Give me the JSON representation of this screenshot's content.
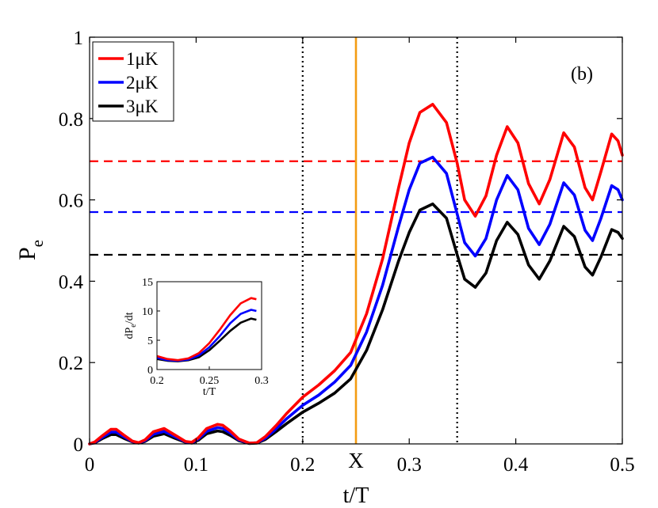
{
  "chart_data": {
    "type": "line",
    "panel_label": "(b)",
    "xlabel": "t/T",
    "ylabel": {
      "main": "P",
      "sub": "e"
    },
    "xlim": [
      0,
      0.5
    ],
    "ylim": [
      0,
      1
    ],
    "xticks": [
      "0",
      "0.1",
      "0.2",
      "0.3",
      "0.4",
      "0.5"
    ],
    "yticks": [
      "0",
      "0.2",
      "0.4",
      "0.6",
      "0.8",
      "1"
    ],
    "x_marker": {
      "label": "X",
      "x": 0.25,
      "color": "#f39c12"
    },
    "vertical_dotted": [
      0.2,
      0.345
    ],
    "series": [
      {
        "name": "1μK",
        "color": "#ff0000",
        "steady_state": 0.695,
        "x": [
          0,
          0.005,
          0.012,
          0.02,
          0.025,
          0.032,
          0.04,
          0.046,
          0.052,
          0.06,
          0.07,
          0.08,
          0.09,
          0.096,
          0.102,
          0.11,
          0.12,
          0.125,
          0.132,
          0.14,
          0.15,
          0.157,
          0.165,
          0.175,
          0.185,
          0.2,
          0.215,
          0.23,
          0.245,
          0.26,
          0.275,
          0.29,
          0.3,
          0.31,
          0.322,
          0.335,
          0.345,
          0.352,
          0.362,
          0.372,
          0.382,
          0.392,
          0.402,
          0.412,
          0.422,
          0.432,
          0.445,
          0.455,
          0.465,
          0.472,
          0.48,
          0.49,
          0.496,
          0.5
        ],
        "y": [
          0,
          0.005,
          0.02,
          0.036,
          0.036,
          0.022,
          0.007,
          0.003,
          0.01,
          0.03,
          0.038,
          0.022,
          0.006,
          0.004,
          0.015,
          0.038,
          0.048,
          0.046,
          0.032,
          0.012,
          0.002,
          0.003,
          0.018,
          0.045,
          0.075,
          0.115,
          0.145,
          0.18,
          0.225,
          0.32,
          0.455,
          0.63,
          0.74,
          0.815,
          0.835,
          0.79,
          0.69,
          0.6,
          0.56,
          0.61,
          0.71,
          0.78,
          0.74,
          0.64,
          0.59,
          0.65,
          0.765,
          0.73,
          0.63,
          0.6,
          0.67,
          0.762,
          0.745,
          0.71
        ]
      },
      {
        "name": "2μK",
        "color": "#0000ff",
        "steady_state": 0.57,
        "x": [
          0,
          0.005,
          0.012,
          0.02,
          0.025,
          0.032,
          0.04,
          0.046,
          0.052,
          0.06,
          0.07,
          0.08,
          0.09,
          0.096,
          0.102,
          0.11,
          0.12,
          0.125,
          0.132,
          0.14,
          0.15,
          0.157,
          0.165,
          0.175,
          0.185,
          0.2,
          0.215,
          0.23,
          0.245,
          0.26,
          0.275,
          0.29,
          0.3,
          0.31,
          0.322,
          0.335,
          0.345,
          0.352,
          0.362,
          0.372,
          0.382,
          0.392,
          0.402,
          0.412,
          0.422,
          0.432,
          0.445,
          0.455,
          0.465,
          0.472,
          0.48,
          0.49,
          0.496,
          0.5
        ],
        "y": [
          0,
          0.004,
          0.016,
          0.029,
          0.029,
          0.018,
          0.006,
          0.003,
          0.008,
          0.024,
          0.031,
          0.018,
          0.005,
          0.003,
          0.012,
          0.031,
          0.04,
          0.038,
          0.027,
          0.01,
          0.002,
          0.003,
          0.014,
          0.037,
          0.062,
          0.095,
          0.12,
          0.152,
          0.193,
          0.275,
          0.39,
          0.535,
          0.625,
          0.69,
          0.705,
          0.665,
          0.565,
          0.495,
          0.462,
          0.505,
          0.6,
          0.66,
          0.625,
          0.53,
          0.49,
          0.54,
          0.642,
          0.612,
          0.525,
          0.5,
          0.555,
          0.635,
          0.625,
          0.6
        ]
      },
      {
        "name": "3μK",
        "color": "#000000",
        "steady_state": 0.465,
        "x": [
          0,
          0.005,
          0.012,
          0.02,
          0.025,
          0.032,
          0.04,
          0.046,
          0.052,
          0.06,
          0.07,
          0.08,
          0.09,
          0.096,
          0.102,
          0.11,
          0.12,
          0.125,
          0.132,
          0.14,
          0.15,
          0.157,
          0.165,
          0.175,
          0.185,
          0.2,
          0.215,
          0.23,
          0.245,
          0.26,
          0.275,
          0.29,
          0.3,
          0.31,
          0.322,
          0.335,
          0.345,
          0.352,
          0.362,
          0.372,
          0.382,
          0.392,
          0.402,
          0.412,
          0.422,
          0.432,
          0.445,
          0.455,
          0.465,
          0.472,
          0.48,
          0.49,
          0.496,
          0.5
        ],
        "y": [
          0,
          0.003,
          0.013,
          0.023,
          0.023,
          0.014,
          0.005,
          0.002,
          0.006,
          0.019,
          0.025,
          0.014,
          0.004,
          0.002,
          0.009,
          0.025,
          0.032,
          0.03,
          0.021,
          0.008,
          0.001,
          0.002,
          0.011,
          0.03,
          0.05,
          0.078,
          0.1,
          0.125,
          0.16,
          0.23,
          0.33,
          0.45,
          0.52,
          0.575,
          0.59,
          0.555,
          0.465,
          0.405,
          0.385,
          0.42,
          0.5,
          0.545,
          0.515,
          0.44,
          0.405,
          0.45,
          0.535,
          0.51,
          0.435,
          0.415,
          0.46,
          0.527,
          0.52,
          0.505
        ]
      }
    ],
    "inset": {
      "xlabel": "t/T",
      "ylabel": {
        "main": "dP",
        "sub": "e",
        "tail": "/dt"
      },
      "xlim": [
        0.2,
        0.3
      ],
      "ylim": [
        0,
        15
      ],
      "xticks": [
        "0.2",
        "0.25",
        "0.3"
      ],
      "yticks": [
        "0",
        "5",
        "10",
        "15"
      ],
      "series": [
        {
          "name": "1μK",
          "color": "#ff0000",
          "x": [
            0.2,
            0.21,
            0.22,
            0.23,
            0.24,
            0.25,
            0.26,
            0.27,
            0.28,
            0.29,
            0.295
          ],
          "y": [
            2.3,
            1.8,
            1.6,
            1.9,
            2.8,
            4.5,
            6.8,
            9.3,
            11.3,
            12.2,
            12
          ]
        },
        {
          "name": "2μK",
          "color": "#0000ff",
          "x": [
            0.2,
            0.21,
            0.22,
            0.23,
            0.24,
            0.25,
            0.26,
            0.27,
            0.28,
            0.29,
            0.295
          ],
          "y": [
            2,
            1.6,
            1.5,
            1.7,
            2.4,
            3.8,
            5.7,
            7.9,
            9.5,
            10.2,
            10
          ]
        },
        {
          "name": "3μK",
          "color": "#000000",
          "x": [
            0.2,
            0.21,
            0.22,
            0.23,
            0.24,
            0.25,
            0.26,
            0.27,
            0.28,
            0.29,
            0.295
          ],
          "y": [
            1.8,
            1.5,
            1.4,
            1.6,
            2.1,
            3.3,
            4.9,
            6.6,
            8,
            8.7,
            8.5
          ]
        }
      ]
    }
  }
}
